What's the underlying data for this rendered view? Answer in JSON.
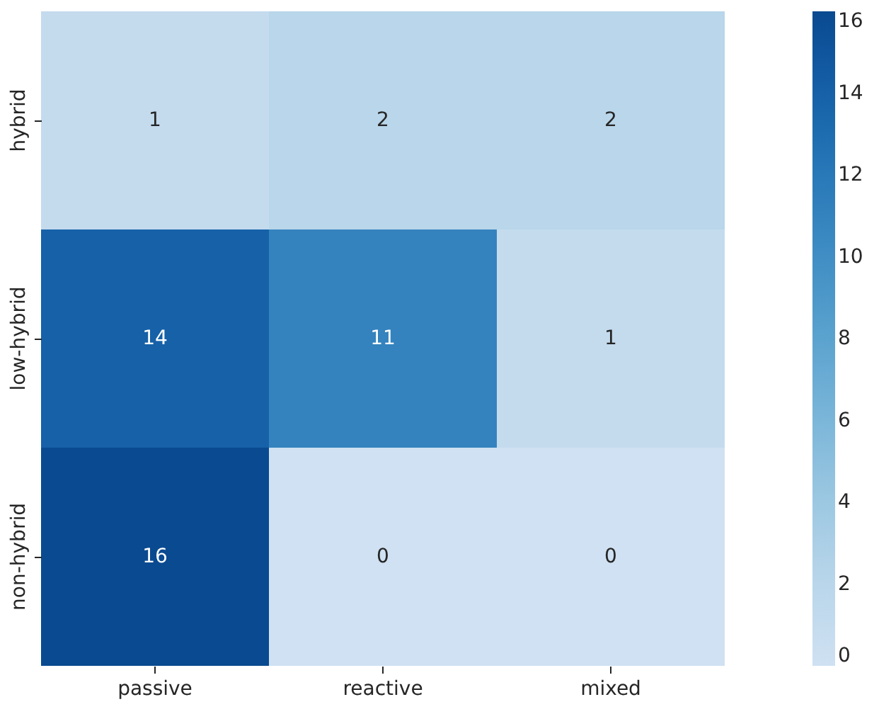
{
  "chart_data": {
    "type": "heatmap",
    "categories": [
      "passive",
      "reactive",
      "mixed"
    ],
    "y_categories": [
      "hybrid",
      "low-hybrid",
      "non-hybrid"
    ],
    "cells": [
      [
        1,
        2,
        2
      ],
      [
        14,
        11,
        1
      ],
      [
        16,
        0,
        0
      ]
    ],
    "clim": [
      0,
      16
    ],
    "cticks": [
      0,
      2,
      4,
      6,
      8,
      10,
      12,
      14,
      16
    ],
    "data_labels": true
  }
}
